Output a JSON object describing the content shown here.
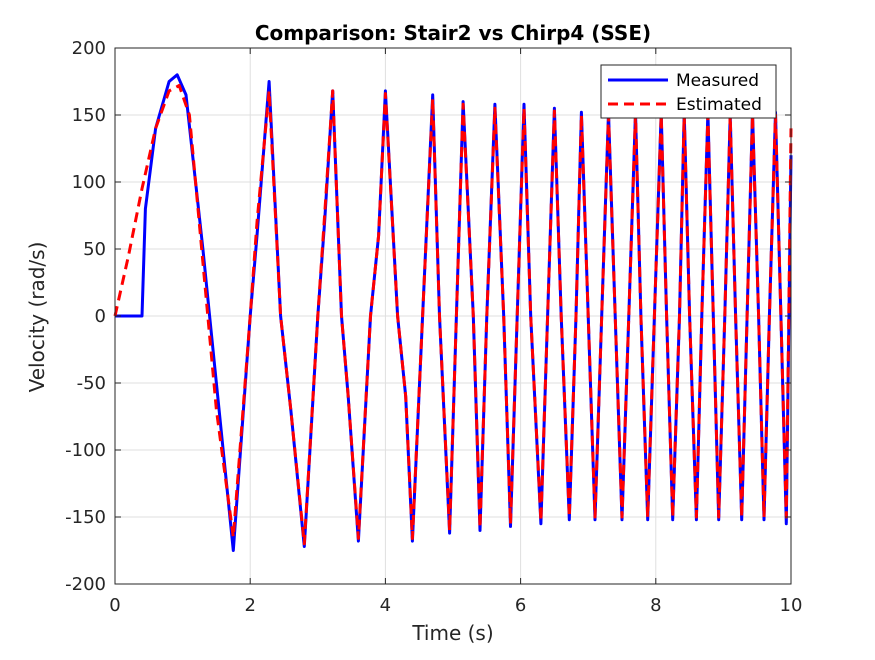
{
  "chart_data": {
    "type": "line",
    "title": "Comparison: Stair2 vs Chirp4 (SSE)",
    "xlabel": "Time (s)",
    "ylabel": "Velocity (rad/s)",
    "xlim": [
      0,
      10
    ],
    "ylim": [
      -200,
      200
    ],
    "xticks": [
      0,
      2,
      4,
      6,
      8,
      10
    ],
    "yticks": [
      -200,
      -150,
      -100,
      -50,
      0,
      50,
      100,
      150,
      200
    ],
    "grid": true,
    "legend_position": "top-right",
    "series": [
      {
        "name": "Measured",
        "color": "#0000ff",
        "style": "solid",
        "x": [
          0.0,
          0.3,
          0.4,
          0.45,
          0.6,
          0.8,
          0.92,
          1.05,
          1.3,
          1.4,
          1.75,
          2.0,
          2.1,
          2.28,
          2.45,
          2.6,
          2.8,
          3.0,
          3.1,
          3.22,
          3.35,
          3.45,
          3.6,
          3.78,
          3.9,
          4.0,
          4.18,
          4.3,
          4.4,
          4.55,
          4.7,
          4.8,
          4.95,
          5.05,
          5.15,
          5.3,
          5.4,
          5.5,
          5.62,
          5.75,
          5.85,
          5.95,
          6.05,
          6.15,
          6.3,
          6.4,
          6.5,
          6.6,
          6.72,
          6.82,
          6.9,
          7.0,
          7.1,
          7.2,
          7.3,
          7.4,
          7.5,
          7.6,
          7.7,
          7.78,
          7.88,
          7.98,
          8.08,
          8.16,
          8.25,
          8.35,
          8.42,
          8.5,
          8.6,
          8.68,
          8.77,
          8.85,
          8.93,
          9.02,
          9.1,
          9.18,
          9.27,
          9.35,
          9.43,
          9.52,
          9.6,
          9.68,
          9.77,
          9.85,
          9.93,
          10.0
        ],
        "values": [
          0,
          0,
          0,
          80,
          140,
          175,
          180,
          165,
          50,
          0,
          -175,
          0,
          60,
          175,
          0,
          -70,
          -172,
          0,
          70,
          168,
          0,
          -60,
          -168,
          0,
          60,
          168,
          0,
          -60,
          -168,
          0,
          165,
          0,
          -162,
          0,
          160,
          0,
          -160,
          0,
          158,
          0,
          -157,
          0,
          158,
          0,
          -155,
          0,
          155,
          0,
          -152,
          0,
          152,
          0,
          -152,
          0,
          152,
          0,
          -152,
          0,
          152,
          0,
          -152,
          0,
          152,
          0,
          -152,
          0,
          152,
          0,
          -152,
          0,
          152,
          0,
          -152,
          0,
          150,
          0,
          -152,
          0,
          152,
          0,
          -152,
          0,
          152,
          0,
          -155,
          120
        ]
      },
      {
        "name": "Estimated",
        "color": "#ff0000",
        "style": "dashed",
        "x": [
          0.0,
          0.2,
          0.4,
          0.6,
          0.8,
          0.95,
          1.1,
          1.3,
          1.5,
          1.75,
          2.0,
          2.1,
          2.28,
          2.45,
          2.6,
          2.8,
          3.0,
          3.1,
          3.22,
          3.35,
          3.45,
          3.6,
          3.78,
          3.9,
          4.0,
          4.18,
          4.3,
          4.4,
          4.55,
          4.7,
          4.8,
          4.95,
          5.05,
          5.15,
          5.3,
          5.4,
          5.5,
          5.62,
          5.75,
          5.85,
          5.95,
          6.05,
          6.15,
          6.3,
          6.4,
          6.5,
          6.6,
          6.72,
          6.82,
          6.9,
          7.0,
          7.1,
          7.2,
          7.3,
          7.4,
          7.5,
          7.6,
          7.7,
          7.78,
          7.88,
          7.98,
          8.08,
          8.16,
          8.25,
          8.35,
          8.42,
          8.5,
          8.6,
          8.68,
          8.77,
          8.85,
          8.93,
          9.02,
          9.1,
          9.18,
          9.27,
          9.35,
          9.43,
          9.52,
          9.6,
          9.68,
          9.77,
          9.85,
          9.93,
          10.0
        ],
        "values": [
          0,
          45,
          95,
          140,
          168,
          172,
          150,
          40,
          -70,
          -165,
          0,
          70,
          168,
          0,
          -70,
          -170,
          0,
          75,
          168,
          0,
          -60,
          -166,
          0,
          60,
          166,
          0,
          -60,
          -166,
          0,
          162,
          0,
          -160,
          0,
          158,
          0,
          -158,
          0,
          155,
          0,
          -155,
          0,
          155,
          0,
          -153,
          0,
          153,
          0,
          -150,
          0,
          150,
          0,
          -150,
          0,
          150,
          0,
          -150,
          0,
          150,
          0,
          -150,
          0,
          150,
          0,
          -150,
          0,
          150,
          0,
          -150,
          0,
          150,
          0,
          -150,
          0,
          150,
          0,
          -150,
          0,
          150,
          0,
          -150,
          0,
          150,
          0,
          -150,
          140
        ]
      }
    ]
  }
}
